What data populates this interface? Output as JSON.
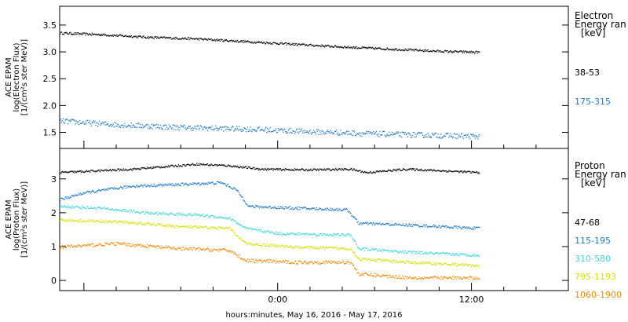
{
  "xlabel": "hours:minutes, May 16, 2016 - May 17, 2016",
  "x_ticks": [
    "0:00",
    "12:00"
  ],
  "chart_data": [
    {
      "type": "scatter",
      "panel": "electron",
      "ylabel_lines": [
        "ACE EPAM",
        "log(Electron Flux)",
        "[1/(cm²s ster MeV)]"
      ],
      "legend_title_lines": [
        "Electron",
        "Energy ran",
        "[keV]"
      ],
      "ylim": [
        1.2,
        3.85
      ],
      "y_ticks": [
        "1.5",
        "2.0",
        "2.5",
        "3.0",
        "3.5"
      ],
      "y_tick_values": [
        1.5,
        2.0,
        2.5,
        3.0,
        3.5
      ],
      "x_range_hours": [
        -13.5,
        18
      ],
      "series": [
        {
          "name": "38-53",
          "color": "#000000",
          "noise": 0.02,
          "points": [
            [
              -13.5,
              3.36
            ],
            [
              -11,
              3.33
            ],
            [
              -8,
              3.28
            ],
            [
              -5,
              3.25
            ],
            [
              -2,
              3.2
            ],
            [
              1,
              3.15
            ],
            [
              4,
              3.1
            ],
            [
              7,
              3.06
            ],
            [
              10,
              3.02
            ],
            [
              12.5,
              3.0
            ]
          ]
        },
        {
          "name": "175-315",
          "color": "#1f78c8",
          "noise": 0.05,
          "points": [
            [
              -13.5,
              1.72
            ],
            [
              -10,
              1.65
            ],
            [
              -6,
              1.6
            ],
            [
              -2,
              1.57
            ],
            [
              2,
              1.52
            ],
            [
              6,
              1.48
            ],
            [
              10,
              1.45
            ],
            [
              12.5,
              1.43
            ]
          ]
        }
      ]
    },
    {
      "type": "scatter",
      "panel": "proton",
      "ylabel_lines": [
        "ACE EPAM",
        "log(Proton Flux)",
        "[1/(cm²s ster MeV)]"
      ],
      "legend_title_lines": [
        "Proton",
        "Energy ran",
        "[keV]"
      ],
      "ylim": [
        -0.3,
        3.9
      ],
      "y_ticks": [
        "0",
        "1",
        "2",
        "3"
      ],
      "y_tick_values": [
        0,
        1,
        2,
        3
      ],
      "x_range_hours": [
        -13.5,
        18
      ],
      "series": [
        {
          "name": "47-68",
          "color": "#000000",
          "noise": 0.03,
          "points": [
            [
              -13.5,
              3.2
            ],
            [
              -9,
              3.3
            ],
            [
              -5,
              3.45
            ],
            [
              -3,
              3.4
            ],
            [
              -1,
              3.3
            ],
            [
              2,
              3.28
            ],
            [
              4.5,
              3.3
            ],
            [
              5.5,
              3.2
            ],
            [
              8,
              3.3
            ],
            [
              12.5,
              3.2
            ]
          ]
        },
        {
          "name": "115-195",
          "color": "#1f78c8",
          "noise": 0.04,
          "points": [
            [
              -13.5,
              2.4
            ],
            [
              -12,
              2.6
            ],
            [
              -9,
              2.8
            ],
            [
              -6,
              2.85
            ],
            [
              -3.5,
              2.9
            ],
            [
              -2.6,
              2.7
            ],
            [
              -1.8,
              2.2
            ],
            [
              1,
              2.15
            ],
            [
              4.3,
              2.1
            ],
            [
              5,
              1.7
            ],
            [
              8,
              1.65
            ],
            [
              12.5,
              1.55
            ]
          ]
        },
        {
          "name": "310-580",
          "color": "#3fd6d6",
          "noise": 0.04,
          "points": [
            [
              -13.5,
              2.2
            ],
            [
              -11,
              2.15
            ],
            [
              -8,
              2.0
            ],
            [
              -5,
              1.95
            ],
            [
              -3,
              1.85
            ],
            [
              -2,
              1.55
            ],
            [
              0,
              1.4
            ],
            [
              4.5,
              1.35
            ],
            [
              5,
              0.95
            ],
            [
              8,
              0.85
            ],
            [
              12.5,
              0.75
            ]
          ]
        },
        {
          "name": "795-1193",
          "color": "#d4e000",
          "noise": 0.04,
          "points": [
            [
              -13.5,
              1.8
            ],
            [
              -10,
              1.75
            ],
            [
              -6,
              1.6
            ],
            [
              -3,
              1.55
            ],
            [
              -2,
              1.1
            ],
            [
              1,
              1.0
            ],
            [
              4.5,
              0.95
            ],
            [
              5,
              0.65
            ],
            [
              8,
              0.55
            ],
            [
              12.5,
              0.45
            ]
          ]
        },
        {
          "name": "1060-1900",
          "color": "#ee8a00",
          "noise": 0.05,
          "points": [
            [
              -13.5,
              1.0
            ],
            [
              -10,
              1.1
            ],
            [
              -6,
              0.95
            ],
            [
              -3,
              0.9
            ],
            [
              -2,
              0.6
            ],
            [
              1,
              0.55
            ],
            [
              4.5,
              0.55
            ],
            [
              5,
              0.2
            ],
            [
              8,
              0.1
            ],
            [
              12.5,
              0.08
            ]
          ]
        }
      ]
    }
  ]
}
